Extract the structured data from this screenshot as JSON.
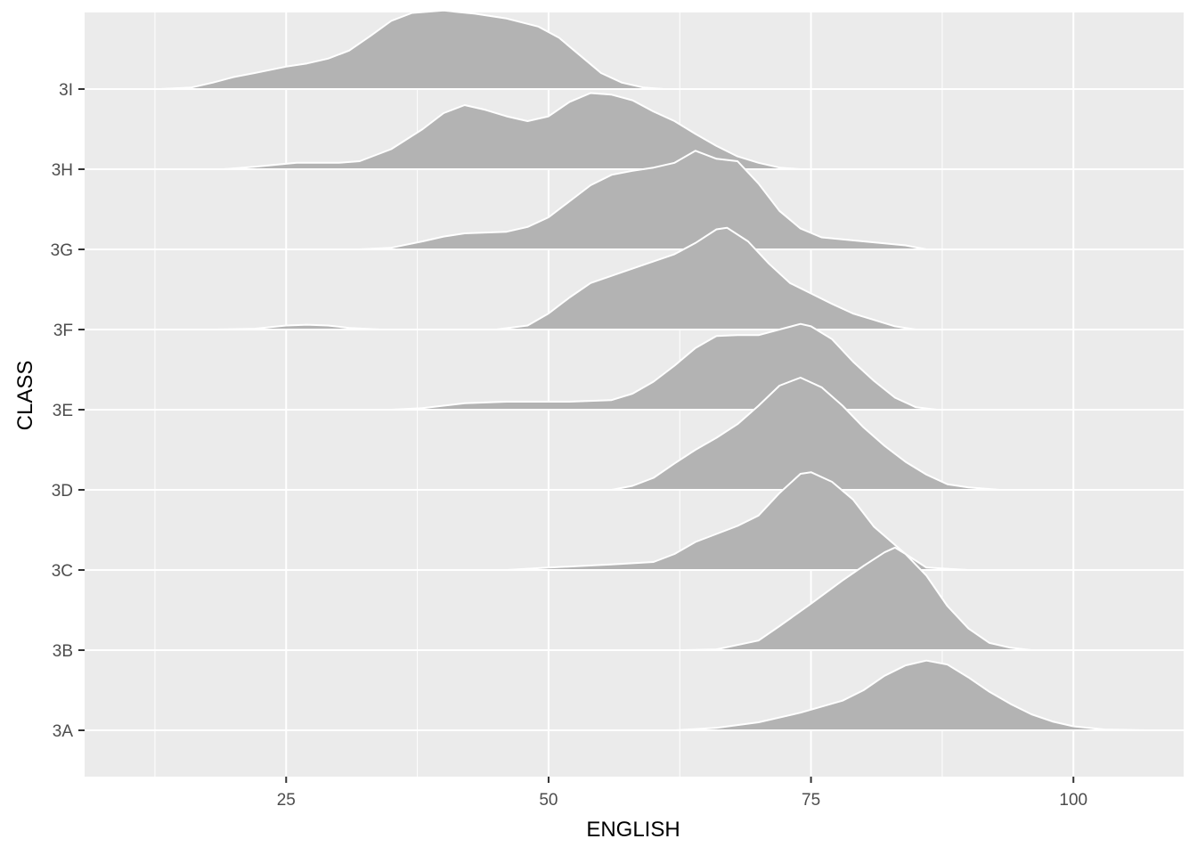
{
  "chart_data": {
    "type": "area",
    "subtype": "ridgeline-density",
    "xlabel": "ENGLISH",
    "ylabel": "CLASS",
    "xlim": [
      5.8,
      110.5
    ],
    "x_ticks": [
      25,
      50,
      75,
      100
    ],
    "x_minor_ticks": [
      12.5,
      37.5,
      62.5,
      87.5
    ],
    "x_tick_labels": [
      "25",
      "50",
      "75",
      "100"
    ],
    "y_categories": [
      "3A",
      "3B",
      "3C",
      "3D",
      "3E",
      "3F",
      "3G",
      "3H",
      "3I"
    ],
    "grid": true,
    "legend": "none",
    "fill_color": "#b3b3b3",
    "outline_color": "#ffffff",
    "panel_color": "#ebebeb",
    "series": [
      {
        "name": "3A",
        "baseline_index": 0,
        "points": [
          [
            40,
            0
          ],
          [
            62,
            0
          ],
          [
            66,
            0.03
          ],
          [
            70,
            0.1
          ],
          [
            74,
            0.22
          ],
          [
            78,
            0.37
          ],
          [
            80,
            0.5
          ],
          [
            82,
            0.68
          ],
          [
            84,
            0.81
          ],
          [
            86,
            0.87
          ],
          [
            88,
            0.82
          ],
          [
            90,
            0.66
          ],
          [
            92,
            0.48
          ],
          [
            94,
            0.33
          ],
          [
            96,
            0.2
          ],
          [
            98,
            0.11
          ],
          [
            100,
            0.05
          ],
          [
            103,
            0.01
          ],
          [
            107,
            0
          ]
        ]
      },
      {
        "name": "3B",
        "baseline_index": 1,
        "points": [
          [
            63,
            0
          ],
          [
            66,
            0.01
          ],
          [
            70,
            0.12
          ],
          [
            72,
            0.3
          ],
          [
            75,
            0.58
          ],
          [
            78,
            0.87
          ],
          [
            80,
            1.05
          ],
          [
            82,
            1.22
          ],
          [
            83,
            1.28
          ],
          [
            84,
            1.2
          ],
          [
            86,
            0.93
          ],
          [
            88,
            0.55
          ],
          [
            90,
            0.27
          ],
          [
            92,
            0.09
          ],
          [
            94,
            0.03
          ],
          [
            96,
            0
          ]
        ]
      },
      {
        "name": "3C",
        "baseline_index": 2,
        "points": [
          [
            46,
            0
          ],
          [
            50,
            0.03
          ],
          [
            56,
            0.07
          ],
          [
            60,
            0.1
          ],
          [
            62,
            0.2
          ],
          [
            64,
            0.35
          ],
          [
            66,
            0.45
          ],
          [
            68,
            0.55
          ],
          [
            70,
            0.68
          ],
          [
            72,
            0.96
          ],
          [
            74,
            1.2
          ],
          [
            75,
            1.22
          ],
          [
            77,
            1.1
          ],
          [
            79,
            0.88
          ],
          [
            81,
            0.54
          ],
          [
            84,
            0.2
          ],
          [
            86,
            0.03
          ],
          [
            90,
            0
          ]
        ]
      },
      {
        "name": "3D",
        "baseline_index": 3,
        "points": [
          [
            52,
            0
          ],
          [
            56,
            0
          ],
          [
            58,
            0.05
          ],
          [
            60,
            0.15
          ],
          [
            62,
            0.33
          ],
          [
            64,
            0.5
          ],
          [
            66,
            0.65
          ],
          [
            68,
            0.82
          ],
          [
            70,
            1.05
          ],
          [
            72,
            1.3
          ],
          [
            74,
            1.4
          ],
          [
            76,
            1.28
          ],
          [
            78,
            1.05
          ],
          [
            80,
            0.78
          ],
          [
            82,
            0.55
          ],
          [
            84,
            0.35
          ],
          [
            86,
            0.19
          ],
          [
            88,
            0.07
          ],
          [
            90,
            0.03
          ],
          [
            93,
            0
          ]
        ]
      },
      {
        "name": "3E",
        "baseline_index": 4,
        "points": [
          [
            35,
            0
          ],
          [
            38,
            0.02
          ],
          [
            42,
            0.08
          ],
          [
            46,
            0.1
          ],
          [
            52,
            0.1
          ],
          [
            56,
            0.12
          ],
          [
            58,
            0.2
          ],
          [
            60,
            0.35
          ],
          [
            62,
            0.55
          ],
          [
            64,
            0.77
          ],
          [
            66,
            0.92
          ],
          [
            68,
            0.93
          ],
          [
            70,
            0.93
          ],
          [
            72,
            1.0
          ],
          [
            74,
            1.07
          ],
          [
            75,
            1.04
          ],
          [
            77,
            0.88
          ],
          [
            79,
            0.6
          ],
          [
            81,
            0.36
          ],
          [
            83,
            0.15
          ],
          [
            85,
            0.03
          ],
          [
            87,
            0
          ]
        ]
      },
      {
        "name": "3F",
        "baseline_index": 5,
        "points": [
          [
            18,
            0
          ],
          [
            22,
            0.01
          ],
          [
            25,
            0.05
          ],
          [
            27,
            0.06
          ],
          [
            29,
            0.05
          ],
          [
            31,
            0.02
          ],
          [
            34,
            0
          ],
          [
            42,
            0
          ],
          [
            45,
            0
          ],
          [
            48,
            0.05
          ],
          [
            50,
            0.2
          ],
          [
            52,
            0.4
          ],
          [
            54,
            0.58
          ],
          [
            58,
            0.76
          ],
          [
            62,
            0.94
          ],
          [
            64,
            1.08
          ],
          [
            66,
            1.25
          ],
          [
            67,
            1.27
          ],
          [
            69,
            1.1
          ],
          [
            71,
            0.82
          ],
          [
            73,
            0.58
          ],
          [
            75,
            0.45
          ],
          [
            77,
            0.32
          ],
          [
            79,
            0.2
          ],
          [
            81,
            0.12
          ],
          [
            83,
            0.04
          ],
          [
            85,
            0
          ]
        ]
      },
      {
        "name": "3G",
        "baseline_index": 6,
        "points": [
          [
            32,
            0
          ],
          [
            35,
            0.02
          ],
          [
            38,
            0.1
          ],
          [
            40,
            0.16
          ],
          [
            42,
            0.2
          ],
          [
            46,
            0.22
          ],
          [
            48,
            0.28
          ],
          [
            50,
            0.4
          ],
          [
            52,
            0.6
          ],
          [
            54,
            0.8
          ],
          [
            56,
            0.93
          ],
          [
            58,
            0.98
          ],
          [
            60,
            1.02
          ],
          [
            62,
            1.08
          ],
          [
            64,
            1.23
          ],
          [
            66,
            1.13
          ],
          [
            68,
            1.1
          ],
          [
            70,
            0.82
          ],
          [
            72,
            0.48
          ],
          [
            74,
            0.26
          ],
          [
            76,
            0.15
          ],
          [
            80,
            0.1
          ],
          [
            84,
            0.05
          ],
          [
            86,
            0
          ]
        ]
      },
      {
        "name": "3H",
        "baseline_index": 7,
        "points": [
          [
            19,
            0
          ],
          [
            22,
            0.03
          ],
          [
            26,
            0.08
          ],
          [
            30,
            0.08
          ],
          [
            32,
            0.1
          ],
          [
            35,
            0.25
          ],
          [
            38,
            0.5
          ],
          [
            40,
            0.7
          ],
          [
            42,
            0.8
          ],
          [
            44,
            0.74
          ],
          [
            46,
            0.66
          ],
          [
            48,
            0.6
          ],
          [
            50,
            0.66
          ],
          [
            52,
            0.84
          ],
          [
            54,
            0.95
          ],
          [
            56,
            0.93
          ],
          [
            58,
            0.86
          ],
          [
            60,
            0.72
          ],
          [
            62,
            0.6
          ],
          [
            64,
            0.44
          ],
          [
            66,
            0.29
          ],
          [
            68,
            0.16
          ],
          [
            70,
            0.08
          ],
          [
            72,
            0.02
          ],
          [
            74,
            0
          ]
        ]
      },
      {
        "name": "3I",
        "baseline_index": 8,
        "points": [
          [
            13,
            0
          ],
          [
            16,
            0.02
          ],
          [
            18,
            0.08
          ],
          [
            20,
            0.15
          ],
          [
            22,
            0.2
          ],
          [
            25,
            0.28
          ],
          [
            27,
            0.32
          ],
          [
            29,
            0.38
          ],
          [
            31,
            0.48
          ],
          [
            33,
            0.66
          ],
          [
            35,
            0.85
          ],
          [
            37,
            0.95
          ],
          [
            40,
            0.98
          ],
          [
            43,
            0.94
          ],
          [
            46,
            0.88
          ],
          [
            49,
            0.78
          ],
          [
            51,
            0.64
          ],
          [
            53,
            0.42
          ],
          [
            55,
            0.2
          ],
          [
            57,
            0.08
          ],
          [
            59,
            0.02
          ],
          [
            61,
            0
          ]
        ]
      }
    ]
  }
}
